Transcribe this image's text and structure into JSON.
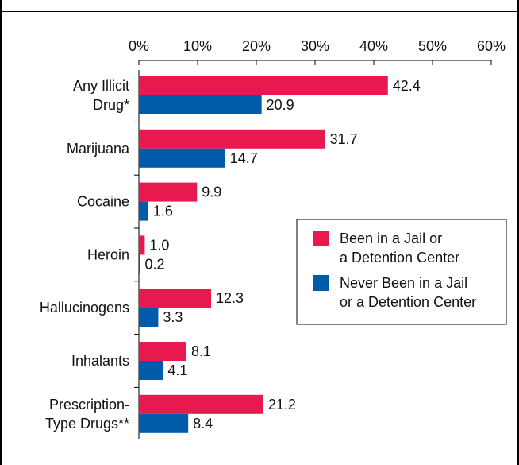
{
  "chart_data": {
    "type": "bar",
    "orientation": "horizontal",
    "x_ticks": [
      "0%",
      "10%",
      "20%",
      "30%",
      "40%",
      "50%",
      "60%"
    ],
    "xlim": [
      0,
      60
    ],
    "categories": [
      [
        "Any Illicit",
        "Drug*"
      ],
      [
        "Marijuana"
      ],
      [
        "Cocaine"
      ],
      [
        "Heroin"
      ],
      [
        "Hallucinogens"
      ],
      [
        "Inhalants"
      ],
      [
        "Prescription-",
        "Type Drugs**"
      ]
    ],
    "series": [
      {
        "name": [
          "Been in a Jail or",
          "a Detention Center"
        ],
        "color": "#e8194e",
        "values": [
          42.4,
          31.7,
          9.9,
          1.0,
          12.3,
          8.1,
          21.2
        ],
        "labels": [
          "42.4",
          "31.7",
          "9.9",
          "1.0",
          "12.3",
          "8.1",
          "21.2"
        ]
      },
      {
        "name": [
          "Never Been in a Jail",
          "or a Detention Center"
        ],
        "color": "#005baa",
        "values": [
          20.9,
          14.7,
          1.6,
          0.2,
          3.3,
          4.1,
          8.4
        ],
        "labels": [
          "20.9",
          "14.7",
          "1.6",
          "0.2",
          "3.3",
          "4.1",
          "8.4"
        ]
      }
    ],
    "legend_position": "right"
  }
}
